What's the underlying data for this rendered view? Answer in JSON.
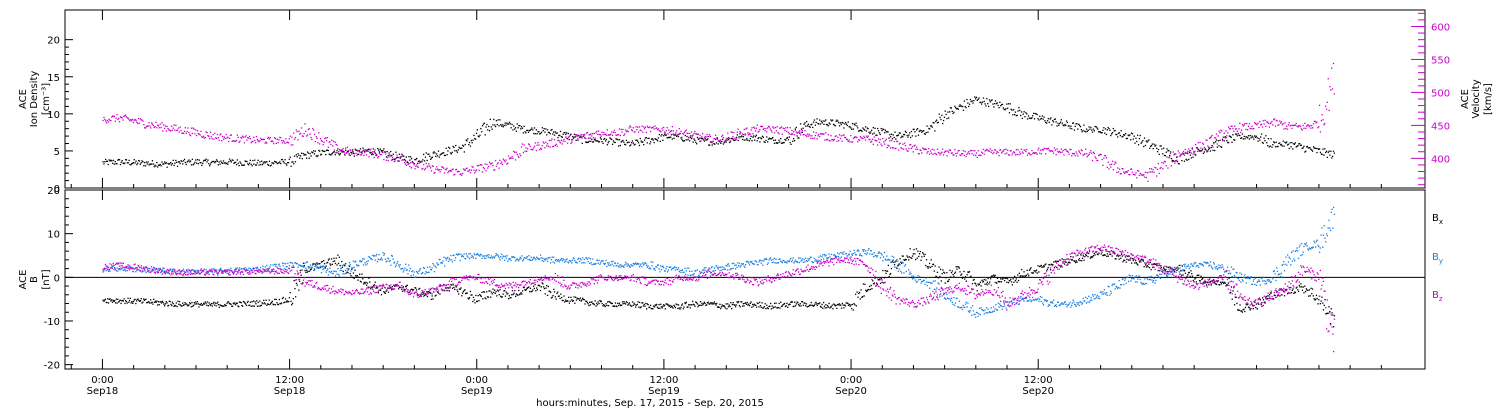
{
  "chart_data": [
    {
      "type": "scatter",
      "panel": "top",
      "ylabel_lines": [
        "ACE",
        "Ion Density"
      ],
      "ylabel_unit": "[cm⁻³]",
      "ylim": [
        0,
        24
      ],
      "yticks": [
        0,
        5,
        10,
        15,
        20
      ],
      "y2label_lines": [
        "ACE",
        "Velocity"
      ],
      "y2label_unit": "[km/s]",
      "y2lim": [
        355,
        625
      ],
      "y2ticks": [
        400,
        450,
        500,
        550,
        600
      ],
      "xlim": [
        -2.4,
        84.8
      ],
      "grid": false,
      "series": [
        {
          "axis": "left",
          "color": "#000000",
          "x": [
            0,
            1,
            2,
            3,
            4,
            5,
            6,
            7,
            8,
            9,
            10,
            11,
            12,
            13,
            14,
            15,
            16,
            17,
            18,
            19,
            20,
            21,
            22,
            23,
            24,
            25,
            26,
            27,
            28,
            29,
            30,
            31,
            32,
            33,
            34,
            35,
            36,
            37,
            38,
            39,
            40,
            41,
            42,
            43,
            44,
            45,
            46,
            47,
            48,
            49,
            50,
            51,
            52,
            53,
            54,
            55,
            56,
            57,
            58,
            59,
            60,
            61,
            62,
            63,
            64,
            65,
            66,
            67,
            68,
            69,
            70,
            71,
            72,
            73,
            74,
            75,
            76,
            77,
            78,
            79
          ],
          "y": [
            3.5,
            3.6,
            3.5,
            3.4,
            3.3,
            3.5,
            3.6,
            3.5,
            3.6,
            3.5,
            3.4,
            3.5,
            3.6,
            4.5,
            4.8,
            5,
            4.8,
            5.1,
            4.8,
            4.2,
            3.8,
            4.5,
            5,
            5.5,
            7,
            9,
            8.5,
            8,
            7.8,
            7.5,
            7,
            6.5,
            6.5,
            6.2,
            6,
            6.5,
            7,
            7,
            6.5,
            6.3,
            6.5,
            7,
            6.8,
            6.5,
            6.6,
            8.5,
            9,
            8.8,
            8.5,
            8,
            7.5,
            7,
            7.5,
            8,
            10,
            11,
            12,
            11.5,
            11,
            10,
            9.5,
            9,
            8.5,
            8,
            8,
            7.5,
            7,
            6,
            5,
            4,
            5,
            5.5,
            6.5,
            7,
            7,
            6,
            6,
            5.5,
            5,
            4.5
          ]
        },
        {
          "axis": "right",
          "color": "#cc00cc",
          "x": [
            0,
            1,
            2,
            3,
            4,
            5,
            6,
            7,
            8,
            9,
            10,
            11,
            12,
            13,
            14,
            15,
            16,
            17,
            18,
            19,
            20,
            21,
            22,
            23,
            24,
            25,
            26,
            27,
            28,
            29,
            30,
            31,
            32,
            33,
            34,
            35,
            36,
            37,
            38,
            39,
            40,
            41,
            42,
            43,
            44,
            45,
            46,
            47,
            48,
            49,
            50,
            51,
            52,
            53,
            54,
            55,
            56,
            57,
            58,
            59,
            60,
            61,
            62,
            63,
            64,
            65,
            66,
            67,
            68,
            69,
            70,
            71,
            72,
            73,
            74,
            75,
            76,
            77,
            78,
            79
          ],
          "y": [
            460,
            462,
            458,
            452,
            448,
            444,
            440,
            435,
            432,
            430,
            428,
            428,
            428,
            445,
            430,
            415,
            410,
            410,
            405,
            400,
            392,
            385,
            382,
            380,
            385,
            390,
            400,
            415,
            420,
            425,
            430,
            435,
            440,
            440,
            445,
            445,
            445,
            440,
            435,
            430,
            432,
            440,
            445,
            445,
            442,
            438,
            435,
            432,
            430,
            430,
            425,
            420,
            415,
            410,
            410,
            408,
            408,
            410,
            410,
            410,
            412,
            412,
            410,
            408,
            400,
            385,
            378,
            375,
            390,
            408,
            415,
            425,
            440,
            448,
            450,
            455,
            450,
            448,
            455,
            530
          ]
        }
      ]
    },
    {
      "type": "scatter",
      "panel": "bottom",
      "ylabel_lines": [
        "ACE",
        "B"
      ],
      "ylabel_unit": "[nT]",
      "ylim": [
        -21,
        20
      ],
      "yticks": [
        -20,
        -10,
        0,
        10,
        20
      ],
      "xlim": [
        -2.4,
        84.8
      ],
      "grid": false,
      "legend_placement": "right",
      "series": [
        {
          "name": "B",
          "subscript": "x",
          "color": "#000000",
          "x": [
            0,
            1,
            2,
            3,
            4,
            5,
            6,
            7,
            8,
            9,
            10,
            11,
            12,
            13,
            14,
            15,
            16,
            17,
            18,
            19,
            20,
            21,
            22,
            23,
            24,
            25,
            26,
            27,
            28,
            29,
            30,
            31,
            32,
            33,
            34,
            35,
            36,
            37,
            38,
            39,
            40,
            41,
            42,
            43,
            44,
            45,
            46,
            47,
            48,
            49,
            50,
            51,
            52,
            53,
            54,
            55,
            56,
            57,
            58,
            59,
            60,
            61,
            62,
            63,
            64,
            65,
            66,
            67,
            68,
            69,
            70,
            71,
            72,
            73,
            74,
            75,
            76,
            77,
            78,
            79
          ],
          "y": [
            -5,
            -5.2,
            -5.3,
            -5.5,
            -5.8,
            -6,
            -6,
            -6.2,
            -6,
            -6,
            -5.8,
            -5.5,
            -5,
            2,
            3,
            4,
            1,
            -1,
            -3,
            -2,
            -3,
            -4,
            -2,
            -3,
            -5,
            -3,
            -4,
            -3,
            -2,
            -4,
            -5,
            -5.5,
            -6,
            -6,
            -6,
            -6.5,
            -6.5,
            -6.5,
            -6,
            -6,
            -6.5,
            -6,
            -6.2,
            -6.5,
            -6,
            -6,
            -6.2,
            -6.5,
            -6,
            -2,
            0,
            4,
            6,
            3,
            0,
            2,
            -2,
            0,
            -1,
            1,
            2,
            3,
            4,
            5,
            6,
            5,
            4,
            3,
            2,
            2,
            0,
            -1,
            -1,
            -7,
            -6,
            -4,
            -3,
            -2,
            -5,
            -10
          ]
        },
        {
          "name": "B",
          "subscript": "y",
          "color": "#1a7fe0",
          "x": [
            0,
            1,
            2,
            3,
            4,
            5,
            6,
            7,
            8,
            9,
            10,
            11,
            12,
            13,
            14,
            15,
            16,
            17,
            18,
            19,
            20,
            21,
            22,
            23,
            24,
            25,
            26,
            27,
            28,
            29,
            30,
            31,
            32,
            33,
            34,
            35,
            36,
            37,
            38,
            39,
            40,
            41,
            42,
            43,
            44,
            45,
            46,
            47,
            48,
            49,
            50,
            51,
            52,
            53,
            54,
            55,
            56,
            57,
            58,
            59,
            60,
            61,
            62,
            63,
            64,
            65,
            66,
            67,
            68,
            69,
            70,
            71,
            72,
            73,
            74,
            75,
            76,
            77,
            78,
            79
          ],
          "y": [
            2,
            2.2,
            2,
            1.8,
            1.5,
            1.5,
            1.5,
            1.5,
            1.6,
            1.8,
            2,
            2.5,
            3,
            3,
            2,
            1,
            3,
            4,
            5,
            3,
            1,
            2,
            4,
            5,
            5,
            5,
            4.5,
            4.5,
            4.5,
            4,
            4,
            4,
            3.5,
            3,
            3,
            3,
            2,
            2,
            1,
            2,
            2.5,
            3,
            3.5,
            4,
            4,
            4,
            4.5,
            5,
            5.5,
            6,
            5,
            3,
            0,
            -1,
            -4,
            -6,
            -8,
            -7,
            -6,
            -5,
            -5,
            -6,
            -6,
            -5,
            -4,
            -2,
            0,
            -1,
            1,
            2,
            3,
            3,
            2,
            0,
            -1,
            0,
            4,
            7,
            8,
            15
          ]
        },
        {
          "name": "B",
          "subscript": "z",
          "color": "#cc00cc",
          "x": [
            0,
            1,
            2,
            3,
            4,
            5,
            6,
            7,
            8,
            9,
            10,
            11,
            12,
            13,
            14,
            15,
            16,
            17,
            18,
            19,
            20,
            21,
            22,
            23,
            24,
            25,
            26,
            27,
            28,
            29,
            30,
            31,
            32,
            33,
            34,
            35,
            36,
            37,
            38,
            39,
            40,
            41,
            42,
            43,
            44,
            45,
            46,
            47,
            48,
            49,
            50,
            51,
            52,
            53,
            54,
            55,
            56,
            57,
            58,
            59,
            60,
            61,
            62,
            63,
            64,
            65,
            66,
            67,
            68,
            69,
            70,
            71,
            72,
            73,
            74,
            75,
            76,
            77,
            78,
            79
          ],
          "y": [
            2.5,
            2.8,
            2.5,
            2,
            1.5,
            1.2,
            1.2,
            1.2,
            1.3,
            1.4,
            1.5,
            1.5,
            1.6,
            -1,
            -2,
            -3,
            -3.5,
            -3,
            -2,
            -2,
            -4,
            -3,
            -2,
            0,
            0,
            -1,
            -2,
            -1,
            0,
            0,
            -2,
            -1,
            0,
            0,
            0,
            -1,
            -1,
            0,
            0,
            1,
            1,
            0,
            -1,
            0,
            1,
            2,
            3,
            4,
            4,
            3,
            -2,
            -5,
            -6,
            -5,
            -3,
            -2,
            -4,
            -2,
            -6,
            -4,
            -2,
            2,
            5,
            6,
            7,
            6,
            5,
            4,
            2,
            0,
            -2,
            -1,
            0,
            -5,
            -6,
            -4,
            -2,
            2,
            0,
            -15
          ]
        }
      ],
      "legend_label_base": "B"
    }
  ],
  "x_axis": {
    "ticks": [
      {
        "time": "0:00",
        "date": "Sep18",
        "hour": 0
      },
      {
        "time": "12:00",
        "date": "Sep18",
        "hour": 12
      },
      {
        "time": "0:00",
        "date": "Sep19",
        "hour": 24
      },
      {
        "time": "12:00",
        "date": "Sep19",
        "hour": 36
      },
      {
        "time": "0:00",
        "date": "Sep20",
        "hour": 48
      },
      {
        "time": "12:00",
        "date": "Sep20",
        "hour": 60
      }
    ],
    "xlabel": "hours:minutes, Sep. 17, 2015 - Sep. 20, 2015"
  },
  "colors": {
    "black": "#000000",
    "magenta": "#cc00cc",
    "blue": "#1a7fe0"
  }
}
